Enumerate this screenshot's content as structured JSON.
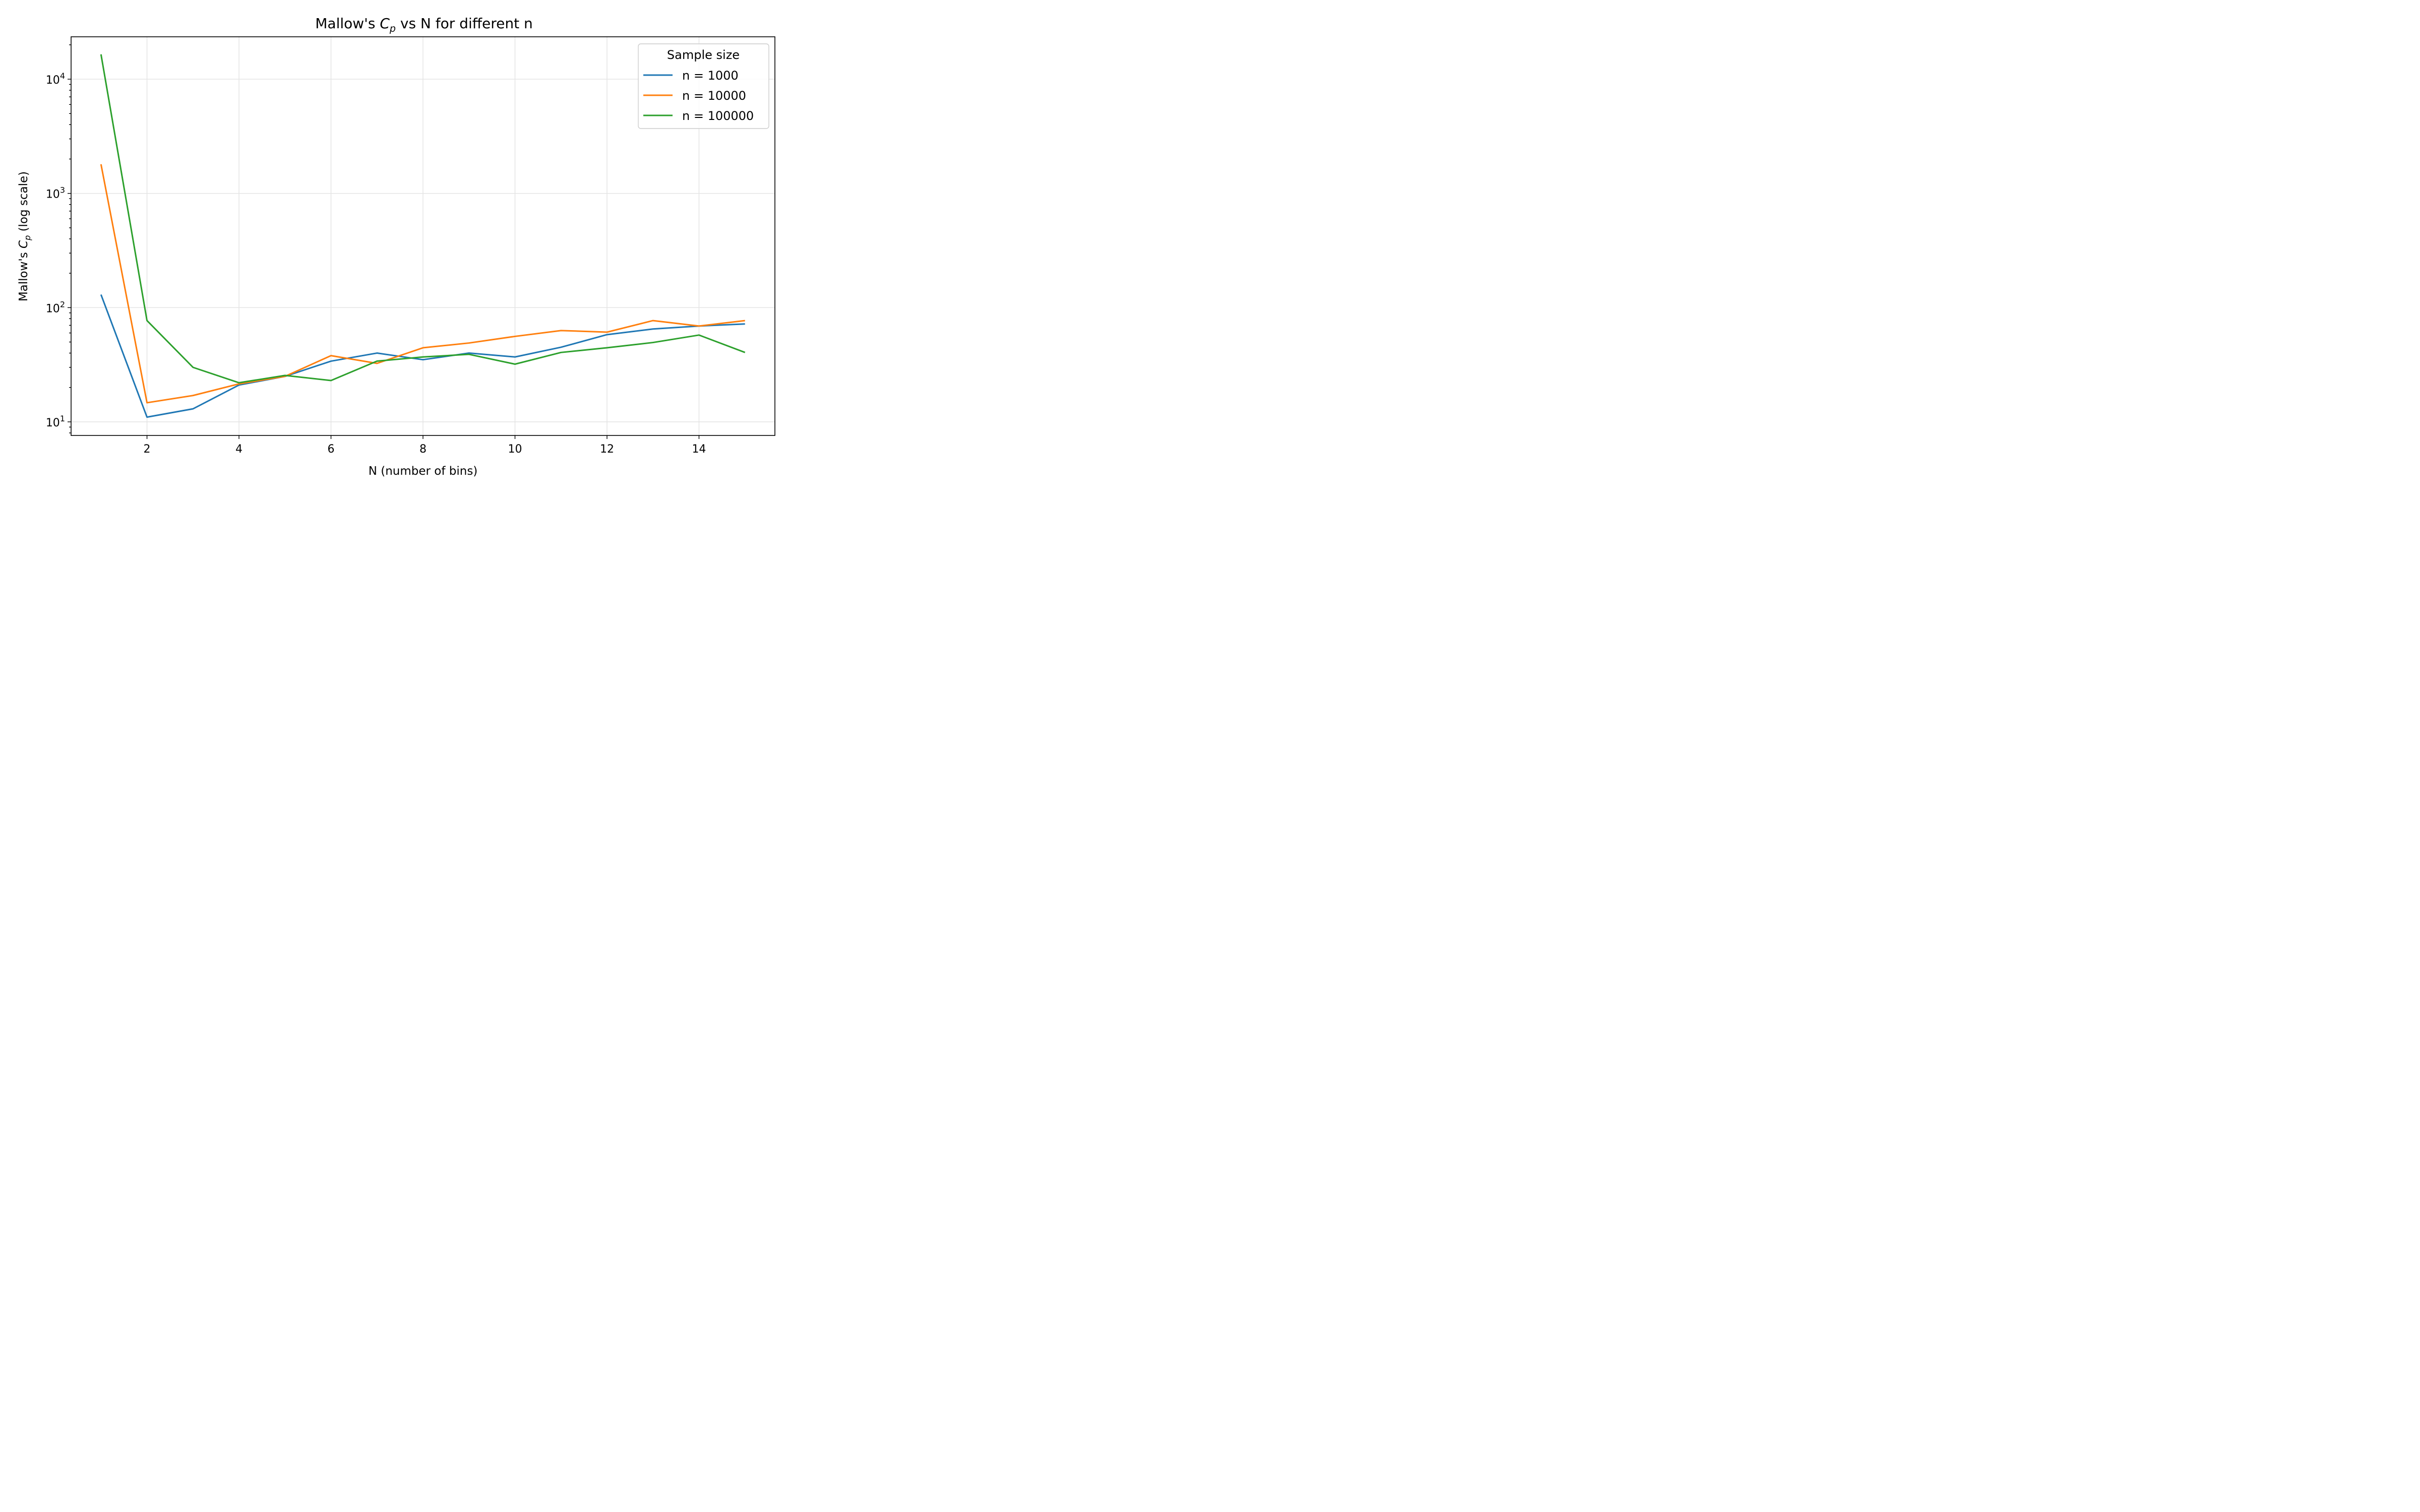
{
  "chart_data": {
    "type": "line",
    "title_parts": {
      "prefix": "Mallow's ",
      "symbol": "C",
      "subscript": "p",
      "suffix": " vs N for different n"
    },
    "xlabel": "N (number of bins)",
    "ylabel_parts": {
      "prefix": "Mallow's ",
      "symbol": "C",
      "subscript": "p",
      "suffix": " (log scale)"
    },
    "yscale": "log",
    "xlim": [
      0.35,
      15.65
    ],
    "ylim": [
      7.6,
      23500
    ],
    "x_ticks": [
      2,
      4,
      6,
      8,
      10,
      12,
      14
    ],
    "x_tick_labels": [
      "2",
      "4",
      "6",
      "8",
      "10",
      "12",
      "14"
    ],
    "y_ticks": [
      10,
      100,
      1000,
      10000
    ],
    "y_tick_labels": [
      {
        "base": "10",
        "exp": "1"
      },
      {
        "base": "10",
        "exp": "2"
      },
      {
        "base": "10",
        "exp": "3"
      },
      {
        "base": "10",
        "exp": "4"
      }
    ],
    "grid": true,
    "legend": {
      "title": "Sample size",
      "position": "top-right"
    },
    "x": [
      1,
      2,
      3,
      4,
      5,
      6,
      7,
      8,
      9,
      10,
      11,
      12,
      13,
      14,
      15
    ],
    "series": [
      {
        "name": "n = 1000",
        "color": "#1f77b4",
        "values": [
          130,
          11,
          13,
          21,
          25,
          34,
          40,
          35,
          40,
          37,
          45,
          58,
          65,
          69,
          72
        ]
      },
      {
        "name": "n = 10000",
        "color": "#ff7f0e",
        "values": [
          1800,
          14.7,
          17,
          21.5,
          25,
          38,
          32.5,
          44.5,
          49,
          56,
          63,
          61,
          77,
          69,
          77
        ]
      },
      {
        "name": "n = 100000",
        "color": "#2ca02c",
        "values": [
          16500,
          77,
          30,
          22,
          25.5,
          23,
          34,
          37,
          39,
          32,
          40.5,
          44.5,
          49.5,
          57.5,
          40.5
        ]
      }
    ]
  }
}
